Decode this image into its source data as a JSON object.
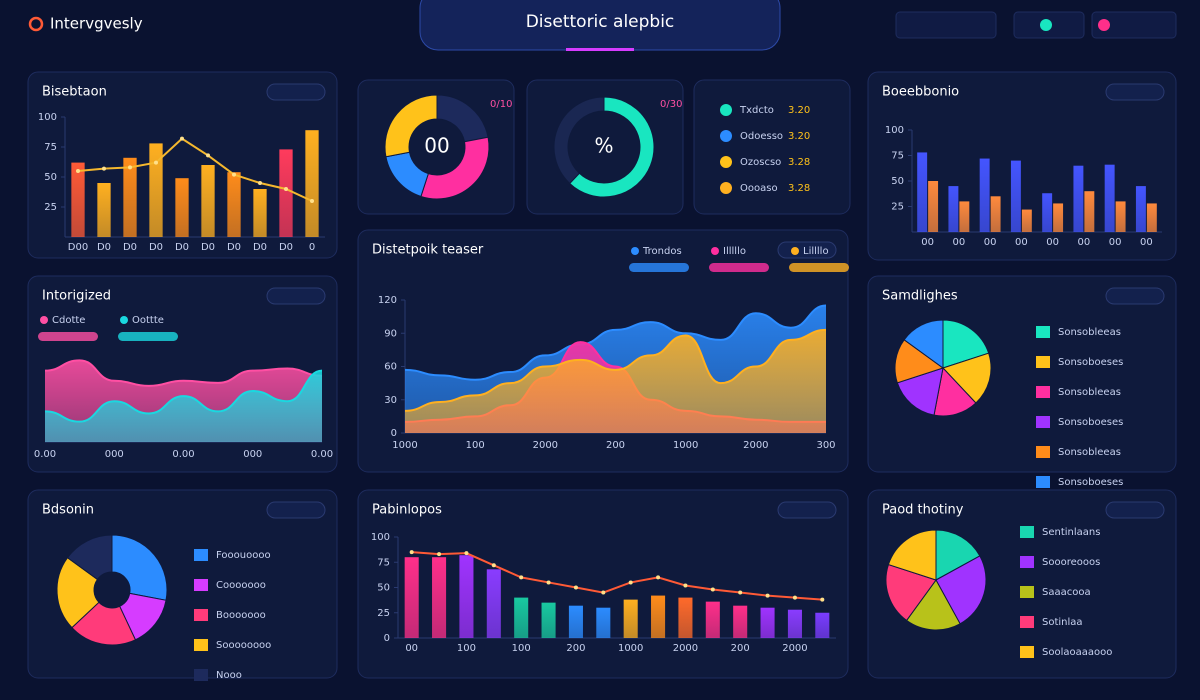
{
  "header": {
    "logo": "Intervgvesly",
    "title": "Disettoric alepbic"
  },
  "chart_data": [
    {
      "type": "bar",
      "title": "Bisebtaon",
      "categories": [
        "D00",
        "D0",
        "D0",
        "D0",
        "D0",
        "D0",
        "D0",
        "D0",
        "D0",
        "0"
      ],
      "series": [
        {
          "kind": "bar",
          "colors": [
            "#ff5a36",
            "#ffb020",
            "#ff8c1a",
            "#ffb020",
            "#ff8c1a",
            "#ffb020",
            "#ff8c1a",
            "#ffb020",
            "#ff3b5c",
            "#ffb020"
          ],
          "values": [
            62,
            45,
            66,
            78,
            49,
            60,
            54,
            40,
            73,
            89
          ]
        },
        {
          "kind": "line",
          "color": "#f5b82e",
          "values": [
            55,
            57,
            58,
            62,
            82,
            68,
            52,
            45,
            40,
            30
          ]
        }
      ],
      "ylim": [
        0,
        100
      ],
      "yticks": [
        25,
        50,
        75,
        100
      ],
      "grid": false
    },
    {
      "type": "donut",
      "center_label": "00",
      "note": "0/10",
      "categories": [
        "A",
        "B",
        "C",
        "D"
      ],
      "values": [
        22,
        33,
        17,
        28
      ],
      "colors": [
        "#1d2a5c",
        "#ff2fa0",
        "#2c8cff",
        "#ffc21a"
      ],
      "legend": false
    },
    {
      "type": "donut",
      "center_label": "%",
      "note": "0/30",
      "categories": [
        "A",
        "B"
      ],
      "values": [
        62,
        38
      ],
      "colors": [
        "#19e6c0",
        "#1a2752"
      ],
      "legend": false
    },
    {
      "type": "list",
      "labels": [
        "Txdcto",
        "Odoesso",
        "Ozoscso",
        "Oooaso"
      ],
      "values": [
        "3.20",
        "3.20",
        "3.28",
        "3.28"
      ],
      "colors": [
        "#19e6c0",
        "#2c8cff",
        "#ffc21a",
        "#ffb020"
      ]
    },
    {
      "type": "bar",
      "title": "Boeebbonio",
      "categories": [
        "00",
        "00",
        "00",
        "00",
        "00",
        "00",
        "00",
        "00"
      ],
      "series": [
        {
          "kind": "bar",
          "color": "#4455ff",
          "values": [
            78,
            45,
            72,
            70,
            38,
            65,
            66,
            45
          ]
        },
        {
          "kind": "bar",
          "color": "#ff8a3d",
          "values": [
            50,
            30,
            35,
            22,
            28,
            40,
            30,
            28
          ]
        }
      ],
      "ylim": [
        0,
        100
      ],
      "yticks": [
        25,
        50,
        75,
        100
      ],
      "grid": false
    },
    {
      "type": "area",
      "title": "Intorigized",
      "categories": [
        "0.00",
        null,
        "000",
        null,
        "0.00",
        null,
        "000",
        null,
        "0.00"
      ],
      "series": [
        {
          "name": "Cdotte",
          "color": "#ff4fa3",
          "values": [
            70,
            80,
            60,
            55,
            60,
            58,
            70,
            72,
            65
          ]
        },
        {
          "name": "Oottte",
          "color": "#1ad8e0",
          "values": [
            30,
            20,
            40,
            28,
            45,
            30,
            50,
            40,
            70
          ]
        }
      ],
      "ylim": [
        0,
        100
      ]
    },
    {
      "type": "area",
      "title": "Distetpoik teaser",
      "categories": [
        "1000",
        null,
        "100",
        null,
        "2000",
        null,
        "200",
        null,
        "1000",
        null,
        "2000",
        null,
        "300"
      ],
      "series": [
        {
          "name": "Trondos",
          "color": "#2c8cff",
          "values": [
            57,
            52,
            48,
            55,
            70,
            80,
            93,
            100,
            90,
            84,
            108,
            95,
            115
          ]
        },
        {
          "name": "Illlllo",
          "color": "#ff2fa0",
          "values": [
            10,
            12,
            15,
            25,
            50,
            82,
            60,
            30,
            20,
            15,
            12,
            10,
            10
          ]
        },
        {
          "name": "Lillllo",
          "color": "#ffb020",
          "values": [
            20,
            28,
            34,
            45,
            60,
            66,
            57,
            70,
            88,
            45,
            60,
            84,
            93
          ]
        }
      ],
      "ylim": [
        0,
        120
      ],
      "yticks": [
        0,
        30,
        60,
        90,
        120
      ]
    },
    {
      "type": "pie",
      "title": "Samdlighes",
      "categories": [
        "Sonsobleeas",
        "Sonsoboeses",
        "Sonsobleeas",
        "Sonsoboeses",
        "Sonsobleeas",
        "Sonsoboeses"
      ],
      "values": [
        20,
        18,
        15,
        17,
        15,
        15
      ],
      "colors": [
        "#19e6c0",
        "#ffc21a",
        "#ff2fa0",
        "#a033ff",
        "#ff8c1a",
        "#2c8cff"
      ],
      "legend": true
    },
    {
      "type": "donut",
      "title": "Bdsonin",
      "categories": [
        "Fooouoooo",
        "Cooooooo",
        "Booooooo",
        "Soooooooo",
        "Nooo"
      ],
      "values": [
        28,
        15,
        20,
        22,
        15
      ],
      "colors": [
        "#2c8cff",
        "#d63cff",
        "#ff3b7a",
        "#ffc21a",
        "#1d2a5c"
      ],
      "legend": true
    },
    {
      "type": "bar",
      "title": "Pabinlopos",
      "categories": [
        "00",
        null,
        "100",
        null,
        "100",
        null,
        "200",
        null,
        "1000",
        null,
        "2000",
        null,
        "200",
        null,
        "2000",
        null
      ],
      "series": [
        {
          "kind": "bar",
          "colors": [
            "#ff2f8a",
            "#ff2f8a",
            "#a033ff",
            "#8a3cff",
            "#19c9a0",
            "#19c9a0",
            "#2c8cff",
            "#2c8cff",
            "#ffb020",
            "#ff8c1a",
            "#ff6a2a",
            "#ff2f8a",
            "#ff2f8a",
            "#a033ff",
            "#8a3cff",
            "#7a3cff"
          ],
          "values": [
            80,
            80,
            82,
            68,
            40,
            35,
            32,
            30,
            38,
            42,
            40,
            36,
            32,
            30,
            28,
            25
          ]
        },
        {
          "kind": "line",
          "color": "#ff5a36",
          "values": [
            85,
            83,
            84,
            72,
            60,
            55,
            50,
            45,
            55,
            60,
            52,
            48,
            45,
            42,
            40,
            38
          ]
        }
      ],
      "ylim": [
        0,
        100
      ],
      "yticks": [
        0,
        25,
        50,
        75,
        100
      ],
      "grid": false
    },
    {
      "type": "pie",
      "title": "Paod thotiny",
      "categories": [
        "Sentinlaans",
        "Soooreooos",
        "Saaacooa",
        "Sotinlaa",
        "Soolaoaaaooo"
      ],
      "values": [
        17,
        25,
        18,
        20,
        20
      ],
      "colors": [
        "#19d6b0",
        "#a033ff",
        "#b8c21a",
        "#ff3b7a",
        "#ffc21a"
      ],
      "legend": true
    }
  ]
}
